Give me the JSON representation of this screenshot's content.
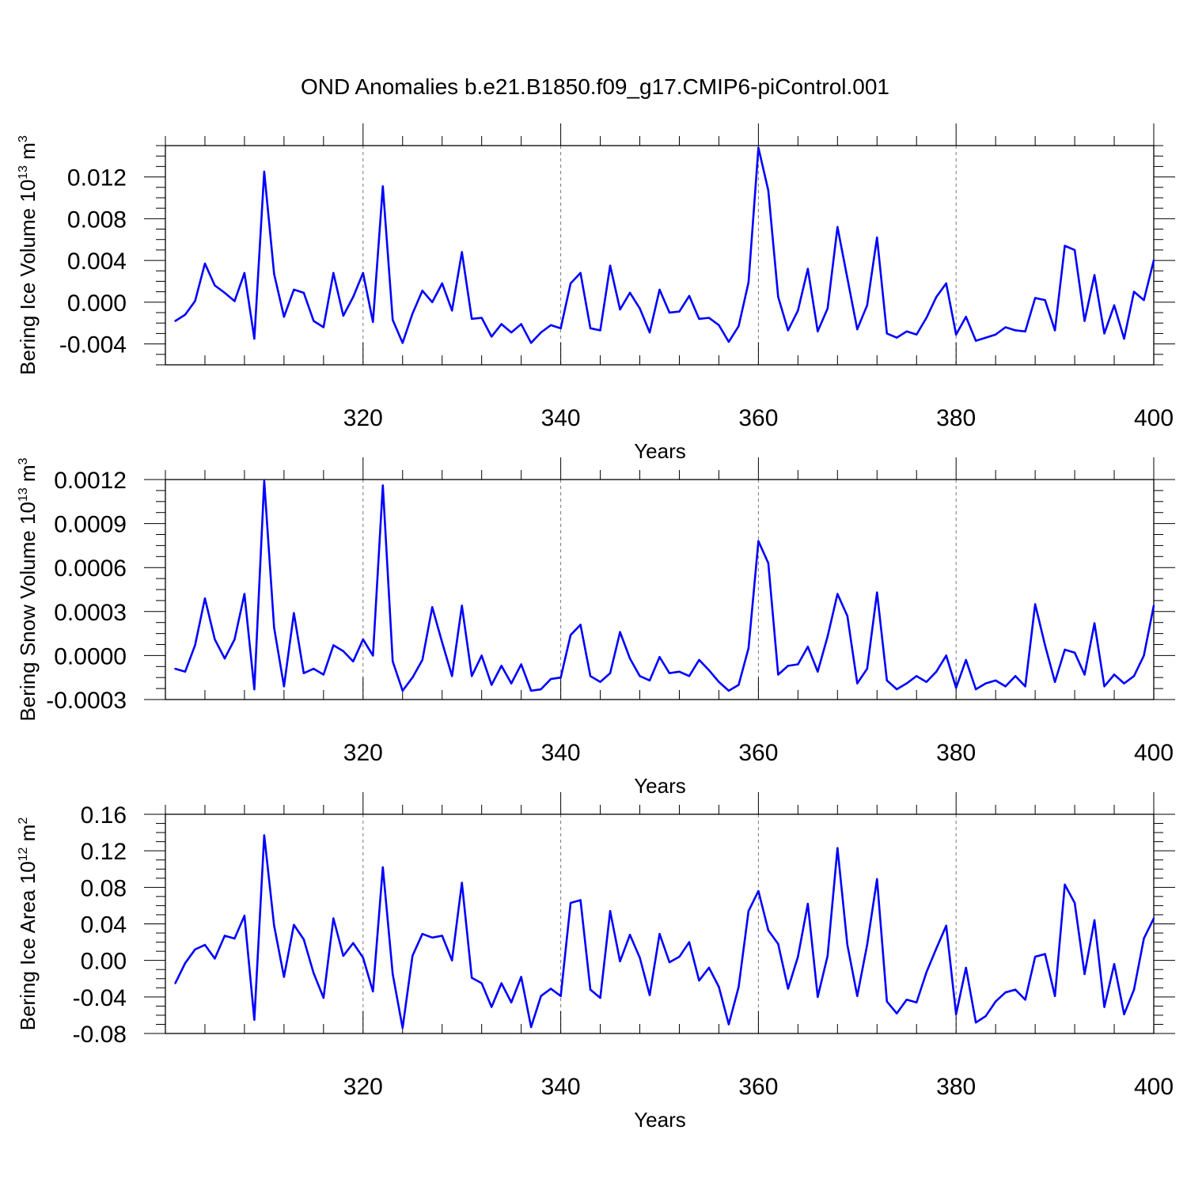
{
  "title": "OND Anomalies b.e21.B1850.f09_g17.CMIP6-piControl.001",
  "chart_data": [
    {
      "type": "line",
      "title": "",
      "xlabel": "Years",
      "ylabel": {
        "main": "Bering Ice Volume 10",
        "exp": "13",
        "unit": " m",
        "unit_exp": "3"
      },
      "x_start": 300,
      "xlim": [
        300,
        400
      ],
      "ylim": [
        -0.006,
        0.015
      ],
      "x_ticks": [
        "320",
        "340",
        "360",
        "380",
        "400"
      ],
      "y_ticks": [
        "0.012",
        "0.008",
        "0.004",
        "0.000",
        "-0.004"
      ],
      "x_tick_values": [
        320,
        340,
        360,
        380,
        400
      ],
      "y_tick_values": [
        0.012,
        0.008,
        0.004,
        0.0,
        -0.004
      ],
      "grid": "dashed vertical at 320, 340, 360, 380",
      "line_color": "#0000ff",
      "values": [
        -0.0018,
        -0.0012,
        0.0001,
        0.0037,
        0.0016,
        0.0009,
        0.0001,
        0.0028,
        -0.0035,
        0.0125,
        0.0027,
        -0.0014,
        0.0012,
        0.0009,
        -0.0018,
        -0.0024,
        0.0028,
        -0.0013,
        0.0005,
        0.0028,
        -0.0019,
        0.0111,
        -0.0017,
        -0.0039,
        -0.0011,
        0.0011,
        0.0,
        0.0018,
        -0.0008,
        0.0048,
        -0.0016,
        -0.0015,
        -0.0033,
        -0.0021,
        -0.0029,
        -0.0021,
        -0.0039,
        -0.0029,
        -0.0022,
        -0.0025,
        0.0018,
        0.0028,
        -0.0025,
        -0.0027,
        0.0035,
        -0.0007,
        0.0009,
        -0.0006,
        -0.0029,
        0.0012,
        -0.001,
        -0.0009,
        0.0006,
        -0.0016,
        -0.0015,
        -0.0022,
        -0.0038,
        -0.0023,
        0.0019,
        0.0148,
        0.0107,
        0.0005,
        -0.0027,
        -0.0008,
        0.0032,
        -0.0028,
        -0.0006,
        0.0072,
        0.0023,
        -0.0026,
        -0.0003,
        0.0062,
        -0.003,
        -0.0034,
        -0.0028,
        -0.0031,
        -0.0015,
        0.0005,
        0.0018,
        -0.0031,
        -0.0014,
        -0.0037,
        -0.0034,
        -0.0031,
        -0.0024,
        -0.0027,
        -0.0028,
        0.0004,
        0.0002,
        -0.0027,
        0.0054,
        0.005,
        -0.0018,
        0.0026,
        -0.003,
        -0.0003,
        -0.0035,
        0.001,
        0.0002,
        0.004
      ]
    },
    {
      "type": "line",
      "title": "",
      "xlabel": "Years",
      "ylabel": {
        "main": "Bering Snow Volume 10",
        "exp": "13",
        "unit": " m",
        "unit_exp": "3"
      },
      "x_start": 300,
      "xlim": [
        300,
        400
      ],
      "ylim": [
        -0.0003,
        0.0012
      ],
      "x_ticks": [
        "320",
        "340",
        "360",
        "380",
        "400"
      ],
      "y_ticks": [
        "0.0012",
        "0.0009",
        "0.0006",
        "0.0003",
        "0.0000",
        "-0.0003"
      ],
      "x_tick_values": [
        320,
        340,
        360,
        380,
        400
      ],
      "y_tick_values": [
        0.0012,
        0.0009,
        0.0006,
        0.0003,
        0.0,
        -0.0003
      ],
      "grid": "dashed vertical at 320, 340, 360, 380",
      "line_color": "#0000ff",
      "values": [
        -9e-05,
        -0.00011,
        7e-05,
        0.00039,
        0.00011,
        -2e-05,
        0.00011,
        0.00042,
        -0.00023,
        0.00119,
        0.00019,
        -0.00021,
        0.00029,
        -0.00012,
        -9e-05,
        -0.00013,
        7e-05,
        3e-05,
        -4e-05,
        0.00011,
        0.0,
        0.00116,
        -4e-05,
        -0.00024,
        -0.00015,
        -3e-05,
        0.00033,
        9e-05,
        -0.00014,
        0.00034,
        -0.00014,
        0.0,
        -0.0002,
        -7e-05,
        -0.00019,
        -6e-05,
        -0.00024,
        -0.00023,
        -0.00016,
        -0.00015,
        0.00014,
        0.00021,
        -0.00014,
        -0.00018,
        -0.00012,
        0.00016,
        -2e-05,
        -0.00014,
        -0.00017,
        -1e-05,
        -0.00012,
        -0.00011,
        -0.00014,
        -3e-05,
        -0.0001,
        -0.00018,
        -0.00024,
        -0.0002,
        5e-05,
        0.00078,
        0.00063,
        -0.00013,
        -7e-05,
        -6e-05,
        6e-05,
        -0.00011,
        0.00013,
        0.00042,
        0.00027,
        -0.00019,
        -9e-05,
        0.00043,
        -0.00017,
        -0.00023,
        -0.00019,
        -0.00014,
        -0.00018,
        -0.00011,
        0.0,
        -0.00022,
        -3e-05,
        -0.00023,
        -0.00019,
        -0.00017,
        -0.00021,
        -0.00014,
        -0.00021,
        0.00035,
        7e-05,
        -0.00018,
        4e-05,
        2e-05,
        -0.00013,
        0.00022,
        -0.00021,
        -0.00013,
        -0.00019,
        -0.00014,
        0.0,
        0.00034
      ]
    },
    {
      "type": "line",
      "title": "",
      "xlabel": "Years",
      "ylabel": {
        "main": "Bering Ice Area 10",
        "exp": "12",
        "unit": " m",
        "unit_exp": "2"
      },
      "x_start": 300,
      "xlim": [
        300,
        400
      ],
      "ylim": [
        -0.08,
        0.16
      ],
      "x_ticks": [
        "320",
        "340",
        "360",
        "380",
        "400"
      ],
      "y_ticks": [
        "0.16",
        "0.12",
        "0.08",
        "0.04",
        "0.00",
        "-0.04",
        "-0.08"
      ],
      "x_tick_values": [
        320,
        340,
        360,
        380,
        400
      ],
      "y_tick_values": [
        0.16,
        0.12,
        0.08,
        0.04,
        0.0,
        -0.04,
        -0.08
      ],
      "grid": "dashed vertical at 320, 340, 360, 380",
      "line_color": "#0000ff",
      "values": [
        -0.025,
        -0.003,
        0.012,
        0.017,
        0.002,
        0.027,
        0.024,
        0.049,
        -0.065,
        0.137,
        0.038,
        -0.018,
        0.039,
        0.023,
        -0.014,
        -0.041,
        0.046,
        0.005,
        0.019,
        0.003,
        -0.034,
        0.102,
        -0.015,
        -0.074,
        0.005,
        0.029,
        0.025,
        0.027,
        0.0,
        0.085,
        -0.019,
        -0.025,
        -0.051,
        -0.025,
        -0.046,
        -0.018,
        -0.073,
        -0.039,
        -0.031,
        -0.039,
        0.063,
        0.066,
        -0.032,
        -0.041,
        0.054,
        -0.001,
        0.028,
        0.003,
        -0.038,
        0.029,
        -0.002,
        0.004,
        0.02,
        -0.022,
        -0.008,
        -0.029,
        -0.07,
        -0.029,
        0.054,
        0.076,
        0.033,
        0.018,
        -0.031,
        0.004,
        0.062,
        -0.04,
        0.005,
        0.123,
        0.017,
        -0.039,
        0.017,
        0.089,
        -0.045,
        -0.058,
        -0.043,
        -0.046,
        -0.013,
        0.013,
        0.038,
        -0.059,
        -0.008,
        -0.068,
        -0.061,
        -0.045,
        -0.035,
        -0.032,
        -0.043,
        0.004,
        0.007,
        -0.039,
        0.083,
        0.063,
        -0.015,
        0.044,
        -0.051,
        -0.004,
        -0.059,
        -0.032,
        0.024,
        0.046
      ]
    }
  ]
}
